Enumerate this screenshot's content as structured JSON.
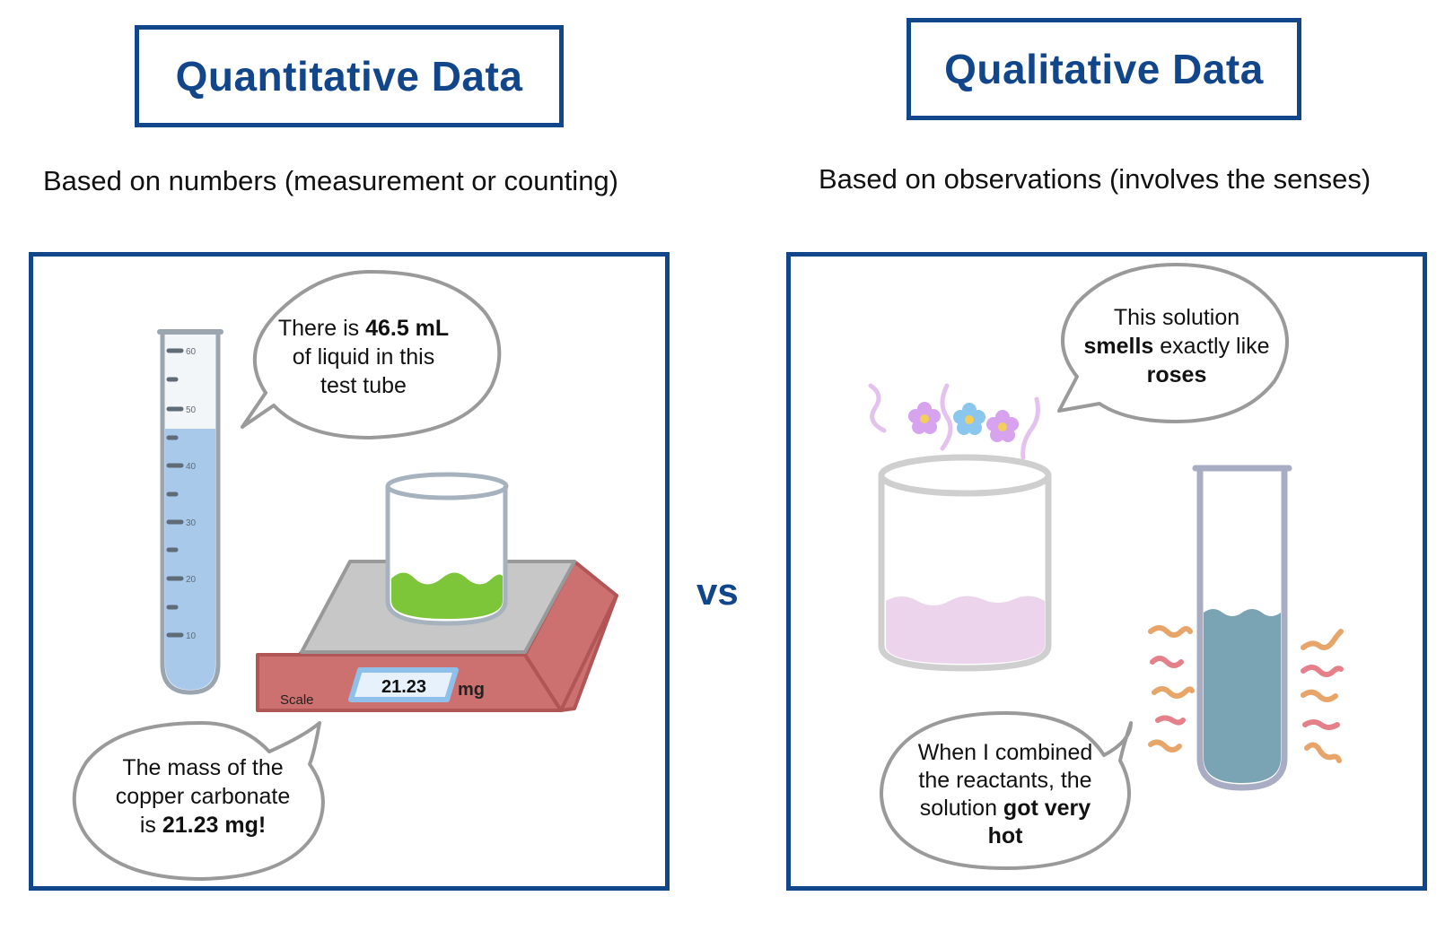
{
  "left": {
    "title": "Quantitative Data",
    "subtitle": "Based on numbers (measurement or counting)",
    "tube_ticks": [
      "60",
      "50",
      "40",
      "30",
      "20",
      "10"
    ],
    "bubble_top": {
      "l1_a": "There is ",
      "l1_b": "46.5 mL",
      "l2": "of liquid in this",
      "l3": "test tube"
    },
    "scale": {
      "label": "Scale",
      "reading": "21.23",
      "unit": "mg"
    },
    "bubble_bottom": {
      "l1": "The mass of the",
      "l2": "copper carbonate",
      "l3_a": "is ",
      "l3_b": "21.23 mg!"
    }
  },
  "vs": "vs",
  "right": {
    "title": "Qualitative Data",
    "subtitle": "Based on observations (involves the senses)",
    "bubble_top": {
      "l1": "This solution",
      "l2_a": "smells",
      "l2_b": " exactly like",
      "l3": "roses"
    },
    "bubble_bottom": {
      "l1": "When I combined",
      "l2": "the reactants, the",
      "l3_a": "solution ",
      "l3_b": "got very",
      "l4": "hot"
    }
  },
  "colors": {
    "accent": "#12468a",
    "tube_liquid": "#a8c9ea",
    "green_liquid": "#7dc63a",
    "scale_body": "#cc7070",
    "pink_liquid": "#ecd5ec",
    "teal_liquid": "#7aa3b3"
  }
}
